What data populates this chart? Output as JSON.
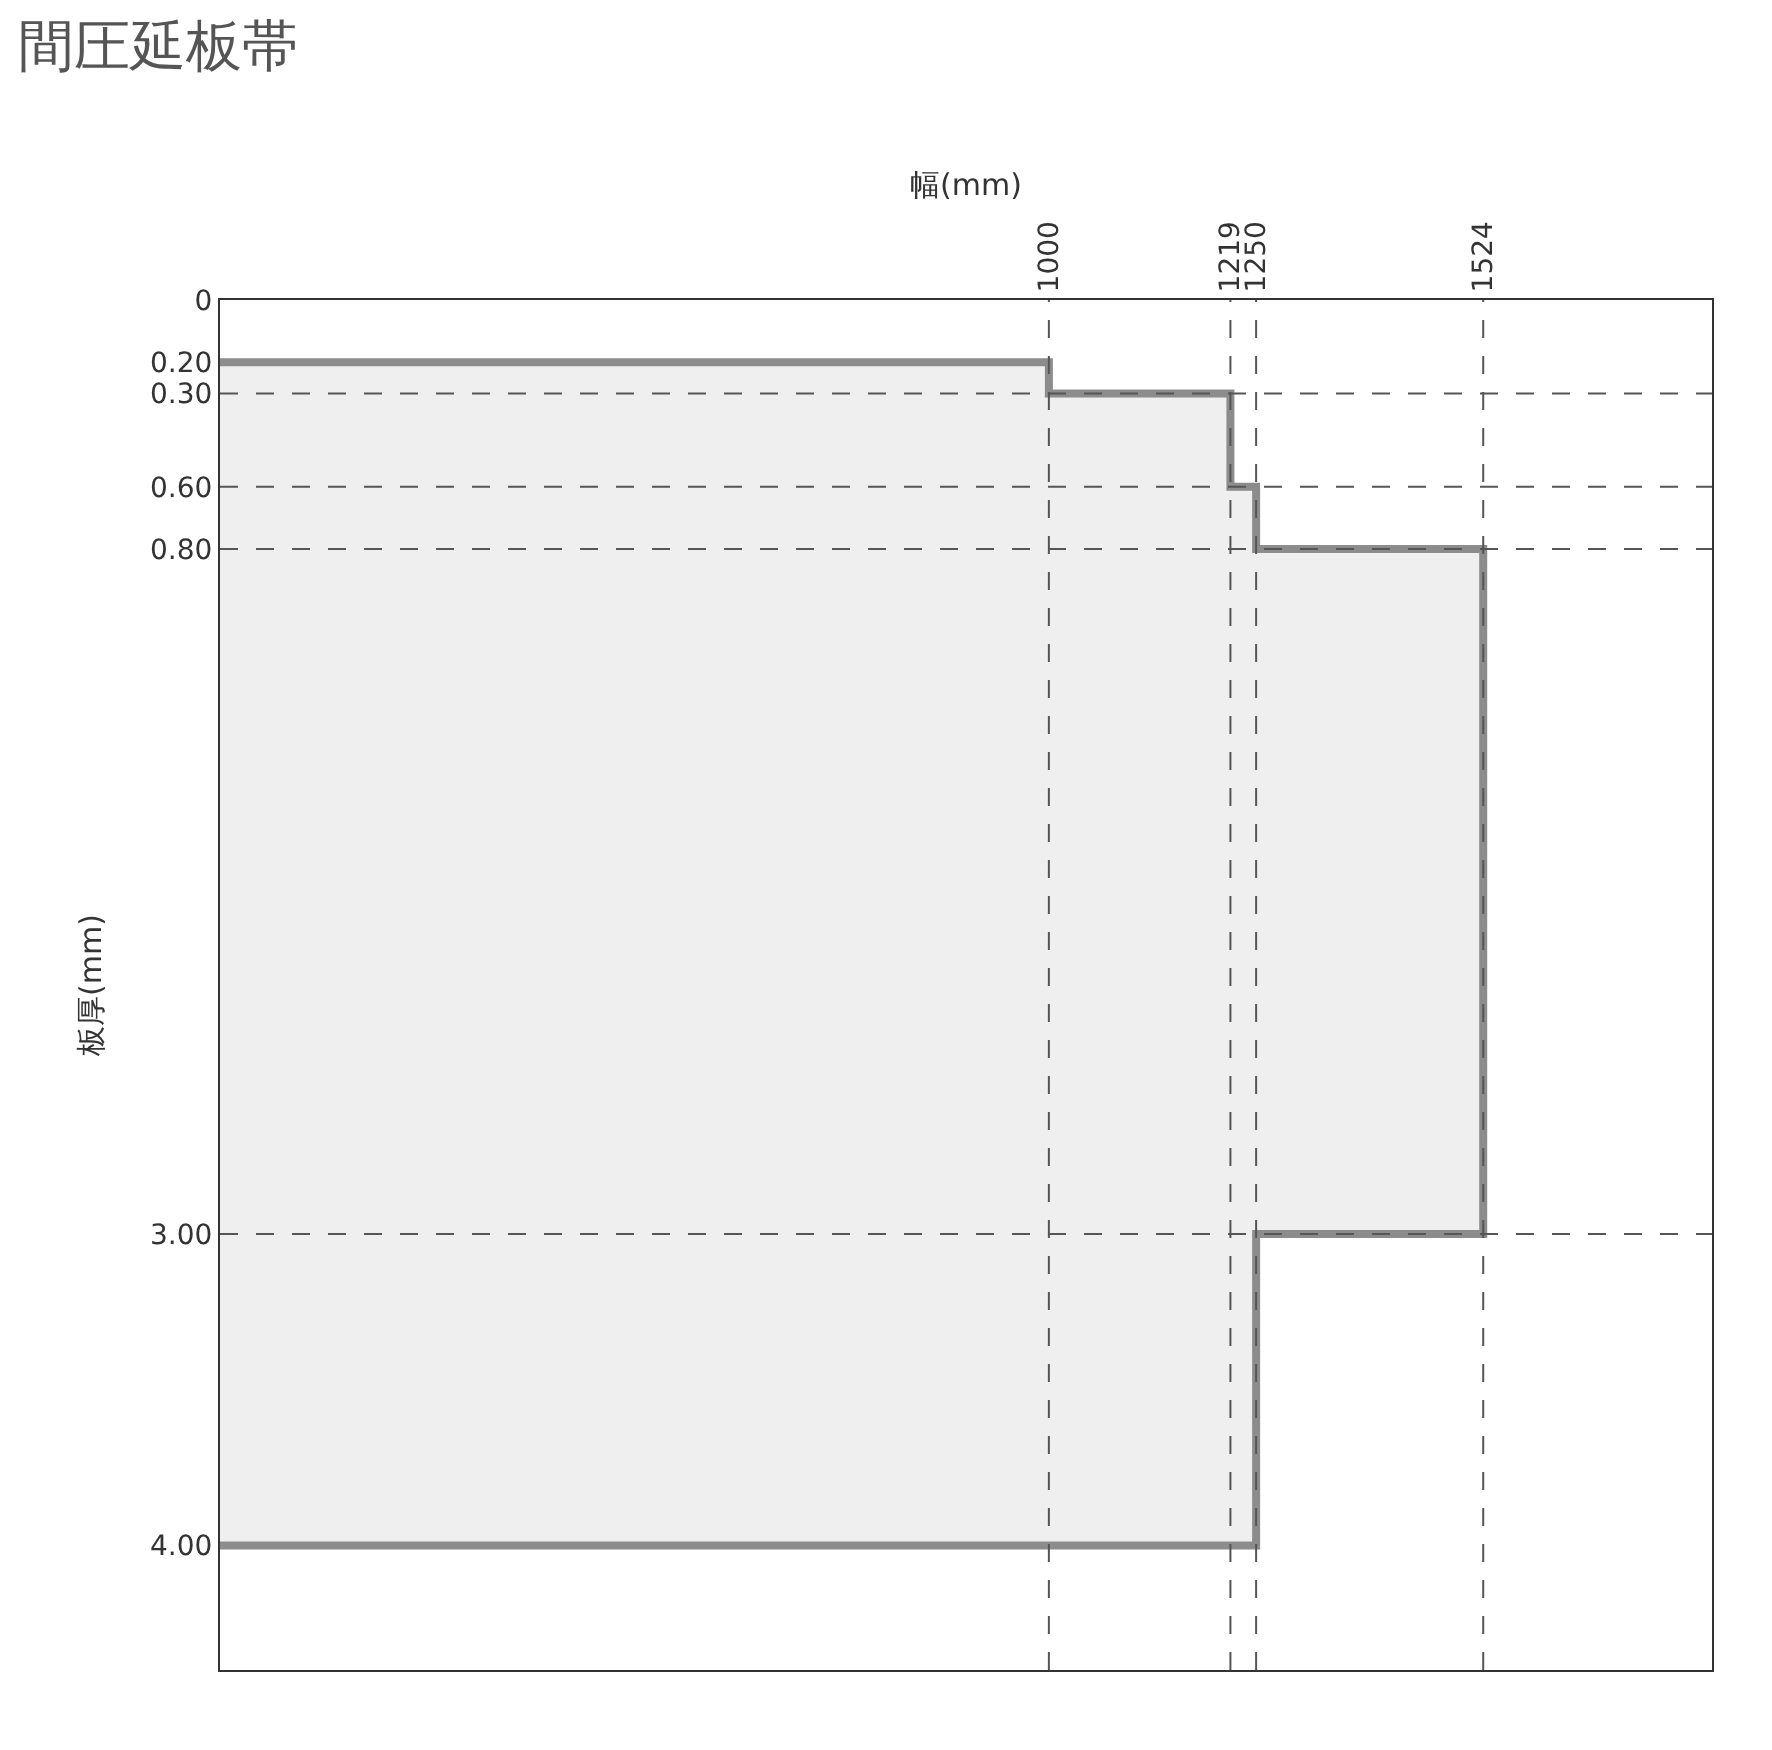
{
  "chart_data": {
    "type": "area",
    "title": "間圧延板帯",
    "xlabel": "幅(mm)",
    "ylabel": "板厚(mm)",
    "series": [
      {
        "color": "#8c8c8c",
        "x": [
          0,
          1000,
          1000,
          1219,
          1219,
          1250,
          1250,
          1524,
          1524,
          1250,
          1250,
          0
        ],
        "values": [
          0.2,
          0.2,
          0.3,
          0.3,
          0.6,
          0.6,
          0.8,
          0.8,
          3.0,
          3.0,
          4.0,
          4.0
        ]
      }
    ],
    "xlim": [
      0,
      1800
    ],
    "xticks": [
      1000,
      1219,
      1250,
      1524
    ],
    "ylim": [
      4.4,
      0
    ],
    "yticks": [
      0,
      {
        "value": 0.2,
        "label": "0.20"
      },
      {
        "value": 0.3,
        "label": "0.30"
      },
      {
        "value": 0.6,
        "label": "0.60"
      },
      {
        "value": 0.8,
        "label": "0.80"
      },
      {
        "value": 3.0,
        "label": "3.00"
      },
      {
        "value": 4.0,
        "label": "4.00"
      }
    ],
    "ref_lines": [
      {
        "axis": "x",
        "value": 1000,
        "line_style": "dashed"
      },
      {
        "axis": "x",
        "value": 1219,
        "line_style": "dashed"
      },
      {
        "axis": "x",
        "value": 1250,
        "line_style": "dashed"
      },
      {
        "axis": "x",
        "value": 1524,
        "line_style": "dashed"
      },
      {
        "axis": "y",
        "value": 0.3,
        "line_style": "dashed"
      },
      {
        "axis": "y",
        "value": 0.6,
        "line_style": "dashed"
      },
      {
        "axis": "y",
        "value": 0.8,
        "line_style": "dashed"
      },
      {
        "axis": "y",
        "value": 3.0,
        "line_style": "dashed"
      }
    ]
  }
}
